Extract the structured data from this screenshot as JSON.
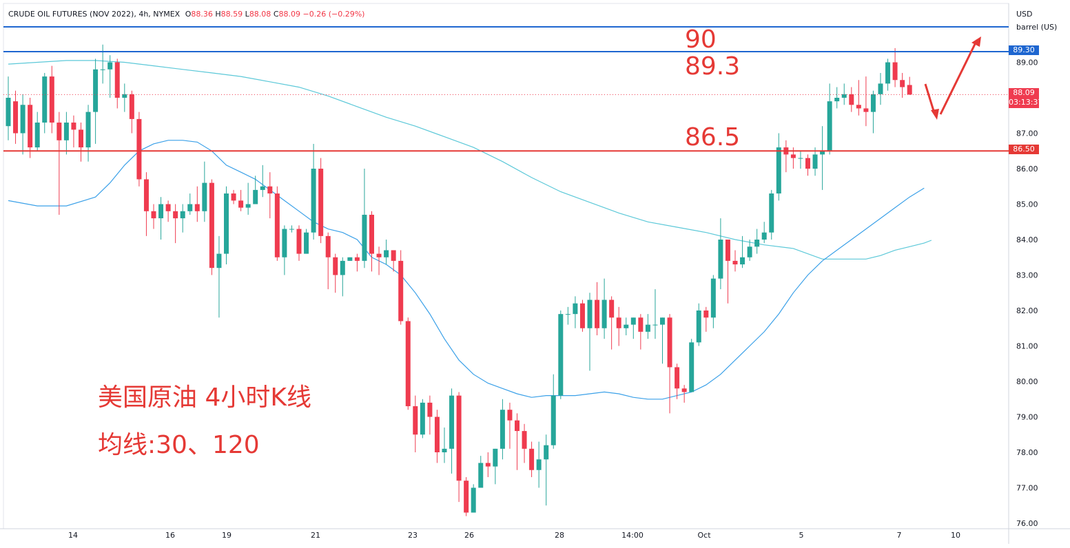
{
  "header": {
    "symbol": "CRUDE OIL FUTURES (NOV 2022), 4h, NYMEX",
    "o_label": "O",
    "o_value": "88.36",
    "h_label": "H",
    "h_value": "88.59",
    "l_label": "L",
    "l_value": "88.08",
    "c_label": "C",
    "c_value": "88.09",
    "change": "−0.26 (−0.29%)"
  },
  "unit": {
    "currency": "USD",
    "measure": "barrel (US)"
  },
  "annotations": {
    "level_90": "90",
    "level_893": "89.3",
    "level_865": "86.5",
    "title_cn": "美国原油 4小时K线",
    "ma_cn": "均线:30、120"
  },
  "badges": {
    "line_8930": "89.30",
    "last_price": "88.09",
    "countdown": "03:13:37",
    "line_8650": "86.50"
  },
  "colors": {
    "up": "#26a69a",
    "down": "#ef3b4f",
    "ma30": "#3aa0e8",
    "ma120": "#5bc8d8",
    "hline_blue": "#1e66d0",
    "hline_red": "#e53935",
    "annotation": "#e53935"
  },
  "chart_data": {
    "type": "candlestick",
    "title": "CRUDE OIL FUTURES (NOV 2022), 4h, NYMEX",
    "ylim": [
      75.8,
      90.5
    ],
    "y_ticks": [
      "89.00",
      "88.00",
      "87.00",
      "86.00",
      "85.00",
      "84.00",
      "83.00",
      "82.00",
      "81.00",
      "80.00",
      "79.00",
      "78.00",
      "77.00",
      "76.00"
    ],
    "x_ticks": [
      "14",
      "16",
      "19",
      "21",
      "23",
      "26",
      "28",
      "14:00",
      "Oct",
      "5",
      "7",
      "10"
    ],
    "horizontal_lines": [
      {
        "value": 90.0,
        "color": "blue"
      },
      {
        "value": 89.3,
        "color": "blue"
      },
      {
        "value": 86.5,
        "color": "red"
      }
    ],
    "candles": [
      [
        87.2,
        88.0,
        88.6,
        86.8
      ],
      [
        87.9,
        87.0,
        88.2,
        86.7
      ],
      [
        87.0,
        87.8,
        88.1,
        86.4
      ],
      [
        87.8,
        86.6,
        88.0,
        86.3
      ],
      [
        86.6,
        87.3,
        87.6,
        86.5
      ],
      [
        87.3,
        88.6,
        88.7,
        87.0
      ],
      [
        88.6,
        87.3,
        88.9,
        87.0
      ],
      [
        87.3,
        86.8,
        87.6,
        84.7
      ],
      [
        86.8,
        87.3,
        87.6,
        86.4
      ],
      [
        87.3,
        87.1,
        87.5,
        86.6
      ],
      [
        87.1,
        86.6,
        87.3,
        86.2
      ],
      [
        86.6,
        87.6,
        87.8,
        86.2
      ],
      [
        87.6,
        88.8,
        89.1,
        86.7
      ],
      [
        88.8,
        88.8,
        89.5,
        88.4
      ],
      [
        88.8,
        89.0,
        89.2,
        88.0
      ],
      [
        89.0,
        88.0,
        89.1,
        87.7
      ],
      [
        88.0,
        88.1,
        88.4,
        87.6
      ],
      [
        88.1,
        87.4,
        88.2,
        87.0
      ],
      [
        87.4,
        85.7,
        87.6,
        85.5
      ],
      [
        85.7,
        84.8,
        85.9,
        84.1
      ],
      [
        84.8,
        84.6,
        85.0,
        84.3
      ],
      [
        84.6,
        85.0,
        85.2,
        84.0
      ],
      [
        85.0,
        84.8,
        85.1,
        84.5
      ],
      [
        84.8,
        84.6,
        85.0,
        83.9
      ],
      [
        84.6,
        84.8,
        85.0,
        84.2
      ],
      [
        84.8,
        85.0,
        85.3,
        84.7
      ],
      [
        85.0,
        84.8,
        85.5,
        84.5
      ],
      [
        84.8,
        85.6,
        86.2,
        84.5
      ],
      [
        85.6,
        83.2,
        85.7,
        83.0
      ],
      [
        83.2,
        83.6,
        84.1,
        81.8
      ],
      [
        83.6,
        85.3,
        85.5,
        83.3
      ],
      [
        85.3,
        85.1,
        85.4,
        85.0
      ],
      [
        85.1,
        84.9,
        85.4,
        84.8
      ],
      [
        84.9,
        85.0,
        85.6,
        84.7
      ],
      [
        85.0,
        85.4,
        85.8,
        85.0
      ],
      [
        85.4,
        85.5,
        86.1,
        85.2
      ],
      [
        85.5,
        85.3,
        85.9,
        84.6
      ],
      [
        85.3,
        83.5,
        85.5,
        83.4
      ],
      [
        83.5,
        84.3,
        84.4,
        83.0
      ],
      [
        84.3,
        84.3,
        84.4,
        84.2
      ],
      [
        84.3,
        83.6,
        84.4,
        83.4
      ],
      [
        83.6,
        84.2,
        84.3,
        83.6
      ],
      [
        84.2,
        86.0,
        86.7,
        84.0
      ],
      [
        86.0,
        84.1,
        86.3,
        83.9
      ],
      [
        84.1,
        83.5,
        84.2,
        82.6
      ],
      [
        83.5,
        83.0,
        83.6,
        82.5
      ],
      [
        83.0,
        83.4,
        83.5,
        82.4
      ],
      [
        83.4,
        83.5,
        83.5,
        83.4
      ],
      [
        83.5,
        83.4,
        83.6,
        83.1
      ],
      [
        83.4,
        84.7,
        86.0,
        83.2
      ],
      [
        84.7,
        83.6,
        84.8,
        83.1
      ],
      [
        83.6,
        83.5,
        83.8,
        83.0
      ],
      [
        83.5,
        83.7,
        84.0,
        83.3
      ],
      [
        83.7,
        83.4,
        83.7,
        83.1
      ],
      [
        83.4,
        81.7,
        83.7,
        81.6
      ],
      [
        81.7,
        79.3,
        81.8,
        79.2
      ],
      [
        79.3,
        78.5,
        79.6,
        78.0
      ],
      [
        78.5,
        79.4,
        79.5,
        78.4
      ],
      [
        79.4,
        79.0,
        79.6,
        78.5
      ],
      [
        79.0,
        78.0,
        79.2,
        77.7
      ],
      [
        78.0,
        78.1,
        78.7,
        77.7
      ],
      [
        78.1,
        79.6,
        79.8,
        77.4
      ],
      [
        79.6,
        77.2,
        79.7,
        76.6
      ],
      [
        77.2,
        76.3,
        77.3,
        76.2
      ],
      [
        76.3,
        77.0,
        77.1,
        76.3
      ],
      [
        77.0,
        77.7,
        77.9,
        77.0
      ],
      [
        77.7,
        77.6,
        78.0,
        77.3
      ],
      [
        77.6,
        78.1,
        78.1,
        77.1
      ],
      [
        78.1,
        79.2,
        79.5,
        77.8
      ],
      [
        79.2,
        78.9,
        79.4,
        78.1
      ],
      [
        78.9,
        78.6,
        79.1,
        77.5
      ],
      [
        78.6,
        78.1,
        78.8,
        77.7
      ],
      [
        78.1,
        77.5,
        78.3,
        77.3
      ],
      [
        77.5,
        77.8,
        78.3,
        77.0
      ],
      [
        77.8,
        78.2,
        78.5,
        76.5
      ],
      [
        78.2,
        79.6,
        80.2,
        78.1
      ],
      [
        79.6,
        81.9,
        82.0,
        79.5
      ],
      [
        81.9,
        81.9,
        82.1,
        81.6
      ],
      [
        81.9,
        82.2,
        82.4,
        81.5
      ],
      [
        82.2,
        81.5,
        82.3,
        81.4
      ],
      [
        81.5,
        82.3,
        82.5,
        80.3
      ],
      [
        82.3,
        81.5,
        82.8,
        81.3
      ],
      [
        81.5,
        82.3,
        82.9,
        81.2
      ],
      [
        82.3,
        81.8,
        82.4,
        80.9
      ],
      [
        81.8,
        81.5,
        82.1,
        81.0
      ],
      [
        81.5,
        81.6,
        81.8,
        81.3
      ],
      [
        81.6,
        81.8,
        81.8,
        81.2
      ],
      [
        81.8,
        81.4,
        81.9,
        80.9
      ],
      [
        81.4,
        81.6,
        81.9,
        81.2
      ],
      [
        81.6,
        81.6,
        82.6,
        81.2
      ],
      [
        81.6,
        81.8,
        81.8,
        80.5
      ],
      [
        81.8,
        80.4,
        81.9,
        79.1
      ],
      [
        80.4,
        79.8,
        80.5,
        79.5
      ],
      [
        79.8,
        79.7,
        79.9,
        79.4
      ],
      [
        79.7,
        81.1,
        81.2,
        80.8
      ],
      [
        81.1,
        82.0,
        82.2,
        81.0
      ],
      [
        82.0,
        81.8,
        82.1,
        81.4
      ],
      [
        81.8,
        82.9,
        83.0,
        81.5
      ],
      [
        82.9,
        84.0,
        84.6,
        82.6
      ],
      [
        84.0,
        83.4,
        84.0,
        82.2
      ],
      [
        83.4,
        83.3,
        83.7,
        83.1
      ],
      [
        83.3,
        83.5,
        84.1,
        83.2
      ],
      [
        83.5,
        83.8,
        84.0,
        83.4
      ],
      [
        83.8,
        84.0,
        84.3,
        83.6
      ],
      [
        84.0,
        84.2,
        84.5,
        83.9
      ],
      [
        84.2,
        85.3,
        85.4,
        84.0
      ],
      [
        85.3,
        86.6,
        87.0,
        85.1
      ],
      [
        86.6,
        86.4,
        86.8,
        85.9
      ],
      [
        86.4,
        86.3,
        86.6,
        86.0
      ],
      [
        86.3,
        86.3,
        86.5,
        86.0
      ],
      [
        86.3,
        86.0,
        86.4,
        85.8
      ],
      [
        86.0,
        86.4,
        86.6,
        85.8
      ],
      [
        86.4,
        86.5,
        87.2,
        85.4
      ],
      [
        86.5,
        87.9,
        88.4,
        86.4
      ],
      [
        87.9,
        88.0,
        88.3,
        87.7
      ],
      [
        88.0,
        88.1,
        88.4,
        87.8
      ],
      [
        88.1,
        87.8,
        88.3,
        87.6
      ],
      [
        87.8,
        87.7,
        88.5,
        87.5
      ],
      [
        87.7,
        87.6,
        88.6,
        87.2
      ],
      [
        87.6,
        88.1,
        88.2,
        87.0
      ],
      [
        88.1,
        88.4,
        88.7,
        87.8
      ],
      [
        88.4,
        89.0,
        89.1,
        88.2
      ],
      [
        89.0,
        88.5,
        89.4,
        88.3
      ],
      [
        88.5,
        88.3,
        88.7,
        88.0
      ],
      [
        88.36,
        88.09,
        88.59,
        88.08
      ]
    ],
    "ma30": [
      [
        0,
        85.1
      ],
      [
        4,
        84.95
      ],
      [
        8,
        84.95
      ],
      [
        12,
        85.2
      ],
      [
        14,
        85.6
      ],
      [
        16,
        86.1
      ],
      [
        18,
        86.5
      ],
      [
        20,
        86.7
      ],
      [
        22,
        86.8
      ],
      [
        24,
        86.8
      ],
      [
        26,
        86.75
      ],
      [
        28,
        86.5
      ],
      [
        30,
        86.1
      ],
      [
        32,
        85.9
      ],
      [
        34,
        85.7
      ],
      [
        36,
        85.4
      ],
      [
        38,
        85.1
      ],
      [
        40,
        84.8
      ],
      [
        42,
        84.5
      ],
      [
        44,
        84.3
      ],
      [
        46,
        84.2
      ],
      [
        48,
        84.0
      ],
      [
        50,
        83.5
      ],
      [
        52,
        83.3
      ],
      [
        54,
        83.0
      ],
      [
        56,
        82.5
      ],
      [
        58,
        81.9
      ],
      [
        60,
        81.2
      ],
      [
        62,
        80.6
      ],
      [
        64,
        80.2
      ],
      [
        66,
        79.95
      ],
      [
        68,
        79.8
      ],
      [
        70,
        79.65
      ],
      [
        72,
        79.55
      ],
      [
        74,
        79.6
      ],
      [
        76,
        79.6
      ],
      [
        78,
        79.6
      ],
      [
        80,
        79.65
      ],
      [
        82,
        79.7
      ],
      [
        84,
        79.65
      ],
      [
        86,
        79.55
      ],
      [
        88,
        79.5
      ],
      [
        90,
        79.5
      ],
      [
        92,
        79.6
      ],
      [
        94,
        79.7
      ],
      [
        96,
        79.9
      ],
      [
        98,
        80.2
      ],
      [
        100,
        80.6
      ],
      [
        102,
        81.0
      ],
      [
        104,
        81.4
      ],
      [
        106,
        81.9
      ],
      [
        108,
        82.5
      ],
      [
        110,
        83.0
      ],
      [
        112,
        83.4
      ],
      [
        114,
        83.7
      ],
      [
        116,
        84.0
      ],
      [
        118,
        84.3
      ],
      [
        120,
        84.6
      ],
      [
        122,
        84.9
      ],
      [
        124,
        85.2
      ],
      [
        126,
        85.45
      ]
    ],
    "ma120": [
      [
        0,
        88.95
      ],
      [
        4,
        89.0
      ],
      [
        8,
        89.05
      ],
      [
        12,
        89.05
      ],
      [
        16,
        89.0
      ],
      [
        20,
        88.9
      ],
      [
        24,
        88.8
      ],
      [
        28,
        88.7
      ],
      [
        32,
        88.6
      ],
      [
        36,
        88.45
      ],
      [
        40,
        88.3
      ],
      [
        44,
        88.05
      ],
      [
        48,
        87.75
      ],
      [
        52,
        87.45
      ],
      [
        56,
        87.2
      ],
      [
        60,
        86.9
      ],
      [
        64,
        86.6
      ],
      [
        68,
        86.2
      ],
      [
        72,
        85.75
      ],
      [
        76,
        85.35
      ],
      [
        80,
        85.05
      ],
      [
        84,
        84.75
      ],
      [
        88,
        84.5
      ],
      [
        92,
        84.35
      ],
      [
        96,
        84.2
      ],
      [
        100,
        84.0
      ],
      [
        104,
        83.85
      ],
      [
        108,
        83.75
      ],
      [
        112,
        83.45
      ],
      [
        116,
        83.45
      ],
      [
        118,
        83.45
      ],
      [
        120,
        83.55
      ],
      [
        122,
        83.7
      ],
      [
        124,
        83.8
      ],
      [
        126,
        83.9
      ],
      [
        127,
        83.98
      ]
    ]
  }
}
